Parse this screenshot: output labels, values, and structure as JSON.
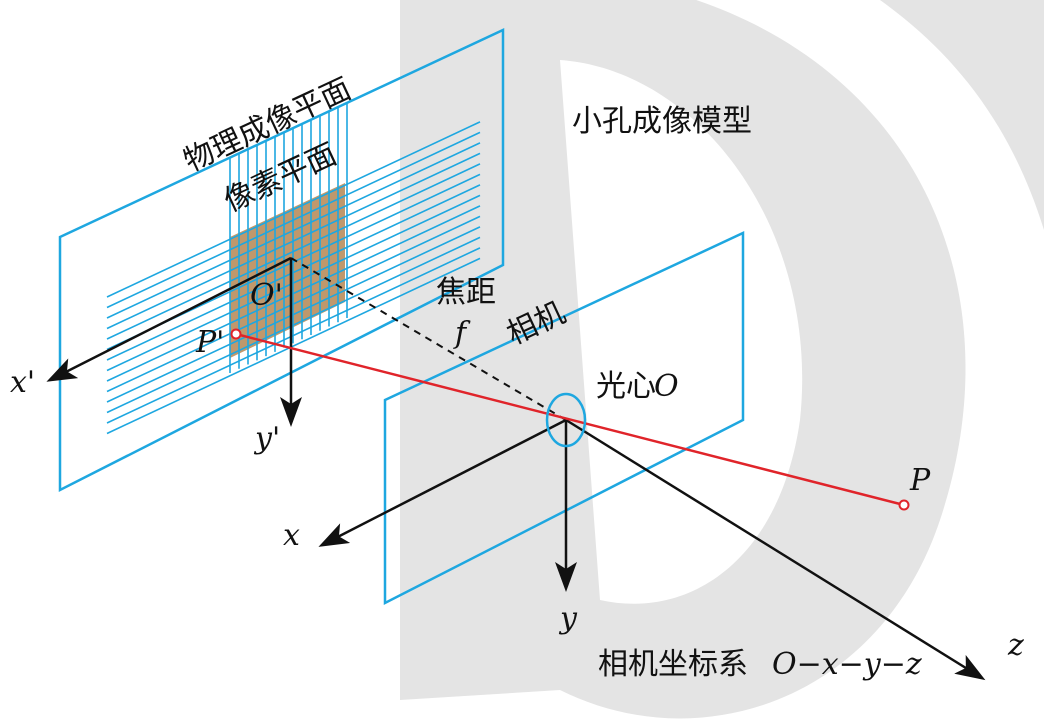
{
  "watermark": {
    "shape": "large-D-letter",
    "color": "#e4e4e4"
  },
  "colors": {
    "plane": "#1ea7e0",
    "ray": "#e0242a",
    "pixel_fill": "#b88d5c",
    "axis": "#111111"
  },
  "labels": {
    "physical_plane": "物理成像平面",
    "pixel_plane": "像素平面",
    "model_title": "小孔成像模型",
    "focal_length": "焦距",
    "focal_symbol": "f",
    "camera": "相机",
    "optical_center_cn": "光心",
    "optical_center_symbol": "O",
    "image_origin": "O'",
    "image_point": "P'",
    "world_point": "P",
    "axis_x_prime": "x'",
    "axis_y_prime": "y'",
    "axis_x": "x",
    "axis_y": "y",
    "axis_z": "z",
    "camera_frame_cn": "相机坐标系",
    "camera_frame_formula": "O−x−y−z"
  }
}
